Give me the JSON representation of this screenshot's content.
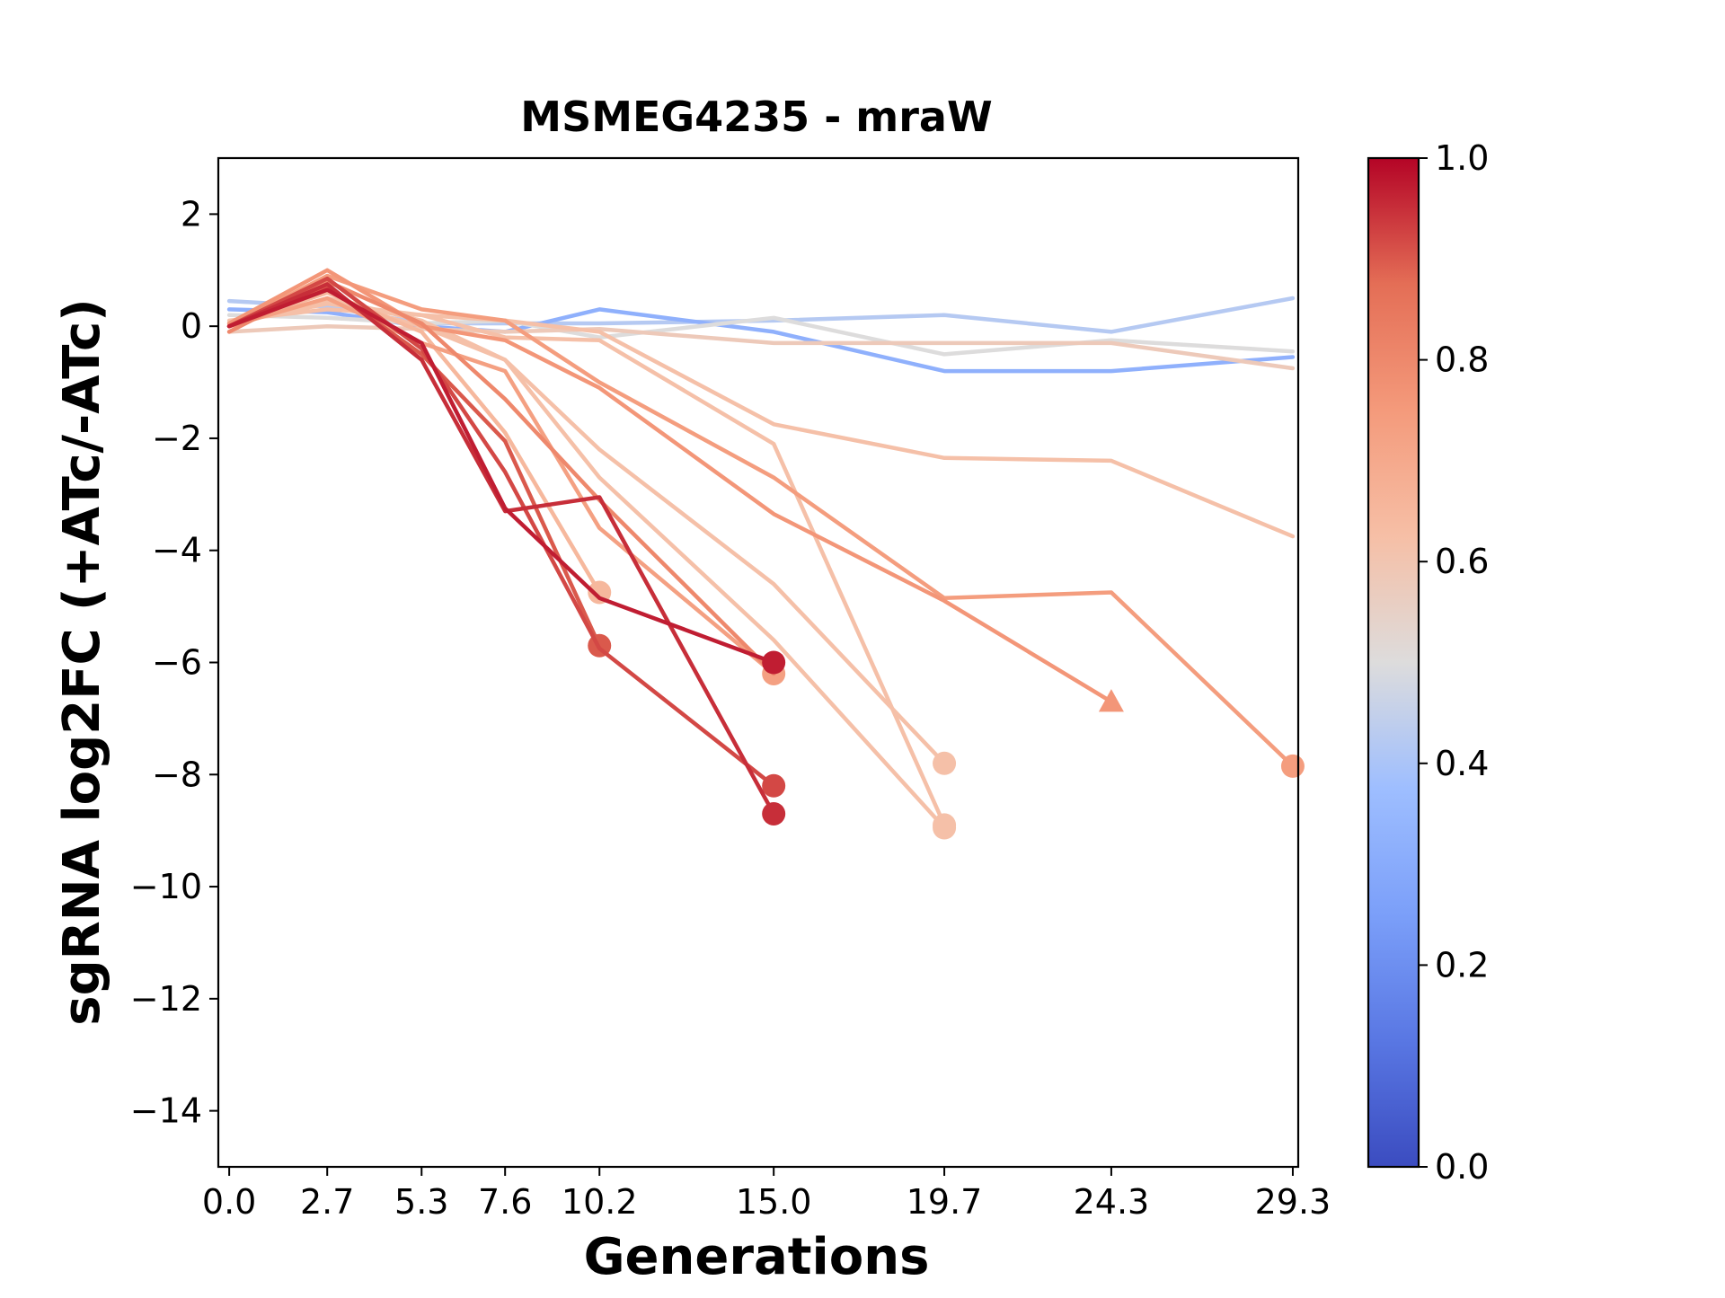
{
  "chart_data": {
    "type": "line",
    "title": "MSMEG4235 - mraW",
    "xlabel": "Generations",
    "ylabel": "sgRNA log2FC (+ATc/-ATc)",
    "xlim": [
      -0.3,
      29.45
    ],
    "ylim": [
      -15,
      3
    ],
    "x_ticks": [
      0.0,
      2.7,
      5.3,
      7.6,
      10.2,
      15.0,
      19.7,
      24.3,
      29.3
    ],
    "x_tick_labels": [
      "0.0",
      "2.7",
      "5.3",
      "7.6",
      "10.2",
      "15.0",
      "19.7",
      "24.3",
      "29.3"
    ],
    "y_ticks": [
      2,
      0,
      -2,
      -4,
      -6,
      -8,
      -10,
      -12,
      -14
    ],
    "y_tick_labels": [
      "2",
      "0",
      "−2",
      "−4",
      "−6",
      "−8",
      "−10",
      "−12",
      "−14"
    ],
    "grid": false,
    "colorbar": {
      "colormap": "coolwarm",
      "range": [
        0.0,
        1.0
      ],
      "ticks": [
        0.0,
        0.2,
        0.4,
        0.6,
        0.8,
        1.0
      ],
      "tick_labels": [
        "0.0",
        "0.2",
        "0.4",
        "0.6",
        "0.8",
        "1.0"
      ]
    },
    "series": [
      {
        "color_value": 0.42,
        "x": [
          0.0,
          2.7,
          5.3,
          7.6,
          10.2,
          15.0,
          19.7,
          24.3,
          29.3
        ],
        "y": [
          0.45,
          0.35,
          0.05,
          0.05,
          0.05,
          0.1,
          0.2,
          -0.1,
          0.5
        ],
        "end_marker": "none"
      },
      {
        "color_value": 0.32,
        "x": [
          0.0,
          2.7,
          5.3,
          7.6,
          10.2,
          15.0,
          19.7,
          24.3,
          29.3
        ],
        "y": [
          0.3,
          0.25,
          0.0,
          -0.1,
          0.3,
          -0.1,
          -0.8,
          -0.8,
          -0.55
        ],
        "end_marker": "none"
      },
      {
        "color_value": 0.5,
        "x": [
          0.0,
          2.7,
          5.3,
          7.6,
          10.2,
          15.0,
          19.7,
          24.3,
          29.3
        ],
        "y": [
          0.2,
          0.15,
          0.05,
          0.1,
          -0.2,
          0.15,
          -0.5,
          -0.25,
          -0.45
        ],
        "end_marker": "none"
      },
      {
        "color_value": 0.58,
        "x": [
          0.0,
          2.7,
          5.3,
          7.6,
          10.2,
          15.0,
          19.7,
          24.3,
          29.3
        ],
        "y": [
          -0.1,
          0.0,
          -0.05,
          -0.1,
          -0.05,
          -0.3,
          -0.3,
          -0.3,
          -0.75
        ],
        "end_marker": "none"
      },
      {
        "color_value": 0.62,
        "x": [
          0.0,
          2.7,
          5.3,
          7.6,
          10.2,
          15.0,
          19.7,
          24.3,
          29.3
        ],
        "y": [
          0.1,
          0.3,
          0.2,
          0.1,
          -0.1,
          -1.75,
          -2.35,
          -2.4,
          -3.75
        ],
        "end_marker": "none"
      },
      {
        "color_value": 0.62,
        "x": [
          0.0,
          2.7,
          5.3,
          7.6,
          10.2,
          15.0,
          19.7
        ],
        "y": [
          0.05,
          0.4,
          0.2,
          -0.2,
          -0.25,
          -2.1,
          -8.9
        ],
        "end_marker": "circle"
      },
      {
        "color_value": 0.62,
        "x": [
          0.0,
          2.7,
          5.3,
          7.6,
          10.2,
          15.0,
          19.7
        ],
        "y": [
          0.0,
          0.5,
          0.1,
          -0.6,
          -2.2,
          -4.6,
          -7.8
        ],
        "end_marker": "circle"
      },
      {
        "color_value": 0.62,
        "x": [
          0.0,
          2.7,
          5.3,
          7.6,
          10.2,
          15.0,
          19.7
        ],
        "y": [
          0.05,
          0.45,
          0.0,
          -0.6,
          -2.7,
          -5.6,
          -8.95
        ],
        "end_marker": "circle"
      },
      {
        "color_value": 0.65,
        "x": [
          0.0,
          2.7,
          5.3,
          7.6,
          10.2
        ],
        "y": [
          0.0,
          0.6,
          -0.1,
          -1.9,
          -4.75
        ],
        "end_marker": "circle"
      },
      {
        "color_value": 0.73,
        "x": [
          0.0,
          2.7,
          5.3,
          7.6,
          10.2,
          15.0
        ],
        "y": [
          0.0,
          0.5,
          -0.3,
          -0.8,
          -3.6,
          -6.2
        ],
        "end_marker": "circle"
      },
      {
        "color_value": 0.74,
        "x": [
          0.0,
          2.7,
          5.3,
          7.6,
          10.2,
          15.0,
          19.7,
          24.3,
          29.3
        ],
        "y": [
          0.0,
          0.9,
          0.3,
          0.1,
          -1.0,
          -2.7,
          -4.85,
          -4.75,
          -7.85
        ],
        "end_marker": "circle"
      },
      {
        "color_value": 0.76,
        "x": [
          0.0,
          2.7,
          5.3,
          7.6,
          10.2,
          15.0,
          19.7,
          24.3
        ],
        "y": [
          0.05,
          1.0,
          0.0,
          -0.25,
          -1.1,
          -3.35,
          -4.9,
          -6.7
        ],
        "end_marker": "triangle"
      },
      {
        "color_value": 0.8,
        "x": [
          0.0,
          2.7,
          5.3,
          7.6,
          10.2,
          15.0
        ],
        "y": [
          -0.1,
          0.8,
          0.05,
          -1.3,
          -3.1,
          -6.2
        ],
        "end_marker": "none"
      },
      {
        "color_value": 0.9,
        "x": [
          0.0,
          2.7,
          5.3,
          7.6,
          10.2
        ],
        "y": [
          0.0,
          0.7,
          -0.5,
          -2.05,
          -5.7
        ],
        "end_marker": "circle"
      },
      {
        "color_value": 0.92,
        "x": [
          0.0,
          2.7,
          5.3,
          7.6,
          10.2,
          15.0
        ],
        "y": [
          0.0,
          0.85,
          -0.4,
          -2.6,
          -5.75,
          -8.2
        ],
        "end_marker": "circle"
      },
      {
        "color_value": 0.95,
        "x": [
          0.0,
          2.7,
          5.3,
          7.6,
          10.2,
          15.0
        ],
        "y": [
          0.0,
          0.75,
          -0.6,
          -3.3,
          -3.05,
          -8.7
        ],
        "end_marker": "circle"
      },
      {
        "color_value": 0.97,
        "x": [
          0.0,
          2.7,
          5.3,
          7.6,
          10.2,
          15.0
        ],
        "y": [
          0.0,
          0.65,
          -0.3,
          -3.25,
          -4.85,
          -6.0
        ],
        "end_marker": "circle"
      }
    ]
  }
}
